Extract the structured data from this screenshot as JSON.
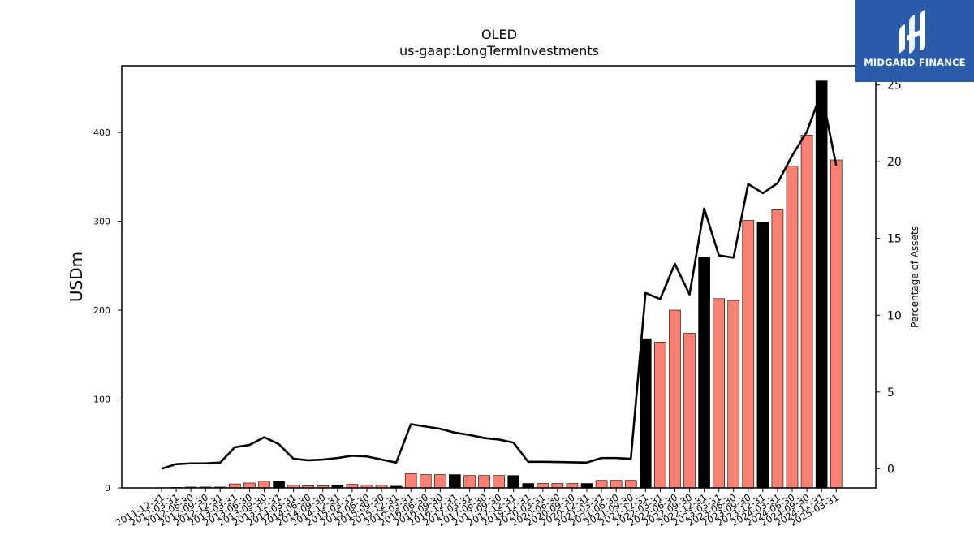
{
  "chart_data": {
    "type": "bar",
    "title": "OLED",
    "subtitle": "us-gaap:LongTermInvestments",
    "ylabel": "USDm",
    "ylabel_right": "Percentage of Assets",
    "ylim": [
      0,
      475
    ],
    "ylim_right": [
      -1.25,
      26.25
    ],
    "yticks": [
      0,
      100,
      200,
      300,
      400
    ],
    "yticks_right": [
      0,
      5,
      10,
      15,
      20,
      25
    ],
    "bar_color_default": "#fa8072",
    "bar_color_highlight": "#000000",
    "line_color": "#000000",
    "categories": [
      "2011-12-31",
      "2012-03-31",
      "2012-06-30",
      "2012-09-30",
      "2012-12-31",
      "2013-03-31",
      "2013-06-30",
      "2013-09-30",
      "2013-12-31",
      "2014-03-31",
      "2014-06-30",
      "2014-09-30",
      "2014-12-31",
      "2015-03-31",
      "2015-06-30",
      "2015-09-30",
      "2015-12-31",
      "2016-03-31",
      "2016-06-30",
      "2016-09-30",
      "2016-12-31",
      "2017-03-31",
      "2017-06-30",
      "2017-09-30",
      "2017-12-31",
      "2019-12-31",
      "2020-03-31",
      "2020-06-30",
      "2020-09-30",
      "2020-12-31",
      "2021-03-31",
      "2021-06-30",
      "2021-09-30",
      "2021-12-31",
      "2022-03-31",
      "2022-06-30",
      "2022-09-30",
      "2022-12-31",
      "2023-03-31",
      "2023-06-30",
      "2023-09-30",
      "2023-12-31",
      "2024-03-31",
      "2024-06-30",
      "2024-09-30",
      "2024-12-31",
      "2025-03-31"
    ],
    "series": [
      {
        "type": "bar",
        "values": [
          0.3,
          0.5,
          1,
          1,
          1,
          4.5,
          5.5,
          7.5,
          7,
          3,
          2.5,
          2.5,
          3,
          4,
          3,
          3,
          2,
          16,
          15,
          15,
          15,
          14,
          14,
          14,
          14,
          5,
          5,
          5,
          5,
          5,
          8.5,
          8.5,
          8.5,
          168,
          164,
          200,
          174,
          260,
          213,
          211,
          301,
          299,
          313,
          362,
          397,
          458,
          369
        ],
        "highlight": [
          false,
          false,
          false,
          false,
          false,
          false,
          false,
          false,
          true,
          false,
          false,
          false,
          true,
          false,
          false,
          false,
          true,
          false,
          false,
          false,
          true,
          false,
          false,
          false,
          true,
          true,
          false,
          false,
          false,
          true,
          false,
          false,
          false,
          true,
          false,
          false,
          false,
          true,
          false,
          false,
          false,
          true,
          false,
          false,
          false,
          true,
          false
        ]
      },
      {
        "type": "line",
        "axis": "right",
        "values": [
          0,
          0.3,
          0.35,
          0.35,
          0.4,
          1.4,
          1.55,
          2.05,
          1.6,
          0.65,
          0.55,
          0.6,
          0.7,
          0.85,
          0.8,
          0.6,
          0.4,
          2.9,
          2.75,
          2.6,
          2.35,
          2.2,
          2.0,
          1.9,
          1.7,
          0.45,
          0.45,
          0.44,
          0.42,
          0.4,
          0.7,
          0.7,
          0.65,
          11.45,
          11.05,
          13.35,
          11.35,
          16.95,
          13.9,
          13.75,
          18.55,
          17.95,
          18.6,
          20.4,
          21.95,
          24.55,
          19.75
        ]
      }
    ]
  },
  "logo": {
    "text": "MIDGARD FINANCE",
    "background": "#2a5caa"
  }
}
